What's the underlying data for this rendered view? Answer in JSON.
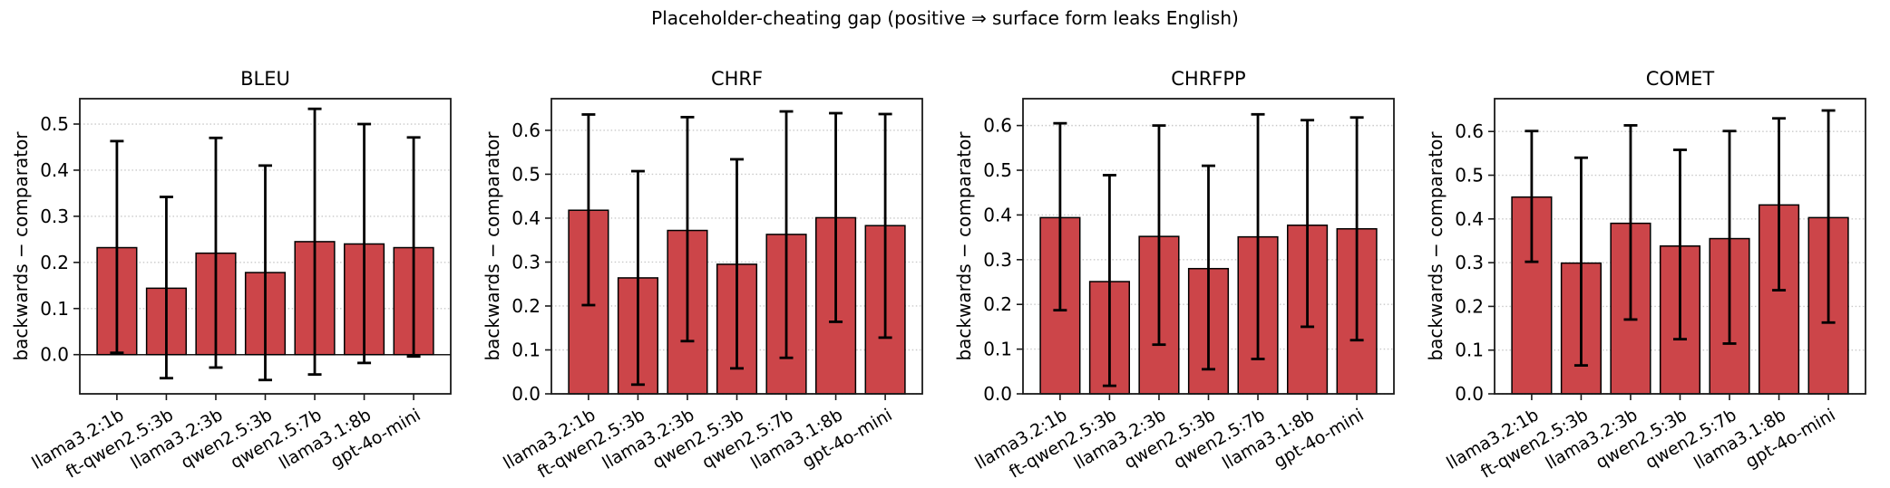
{
  "suptitle": "Placeholder-cheating gap (positive ⇒ surface form leaks English)",
  "ylabel": "backwards − comparator",
  "categories": [
    "llama3.2:1b",
    "ft-qwen2.5:3b",
    "llama3.2:3b",
    "qwen2.5:3b",
    "qwen2.5:7b",
    "llama3.1:8b",
    "gpt-4o-mini"
  ],
  "colors": {
    "bar_fill": "#CC4549",
    "bar_edge": "#000000",
    "error_bar": "#000000",
    "grid": "#c9c9c9",
    "spine": "#1a1a1a",
    "text": "#000000",
    "background": "#ffffff"
  },
  "chart_data": [
    {
      "type": "bar",
      "title": "BLEU",
      "ylabel": "backwards − comparator",
      "categories": [
        "llama3.2:1b",
        "ft-qwen2.5:3b",
        "llama3.2:3b",
        "qwen2.5:3b",
        "qwen2.5:7b",
        "llama3.1:8b",
        "gpt-4o-mini"
      ],
      "values": [
        0.232,
        0.144,
        0.22,
        0.178,
        0.245,
        0.24,
        0.232
      ],
      "error_low": [
        0.004,
        -0.051,
        -0.028,
        -0.055,
        -0.043,
        -0.018,
        -0.004
      ],
      "error_high": [
        0.463,
        0.342,
        0.47,
        0.41,
        0.533,
        0.5,
        0.471
      ],
      "ylim": [
        -0.085,
        0.555
      ],
      "yticks": [
        0.0,
        0.1,
        0.2,
        0.3,
        0.4,
        0.5
      ],
      "grid": true,
      "zero_line": true,
      "legend": "none"
    },
    {
      "type": "bar",
      "title": "CHRF",
      "ylabel": "backwards − comparator",
      "categories": [
        "llama3.2:1b",
        "ft-qwen2.5:3b",
        "llama3.2:3b",
        "qwen2.5:3b",
        "qwen2.5:7b",
        "llama3.1:8b",
        "gpt-4o-mini"
      ],
      "values": [
        0.418,
        0.264,
        0.372,
        0.295,
        0.363,
        0.401,
        0.383
      ],
      "error_low": [
        0.202,
        0.021,
        0.12,
        0.058,
        0.082,
        0.164,
        0.128
      ],
      "error_high": [
        0.636,
        0.507,
        0.63,
        0.534,
        0.643,
        0.639,
        0.637
      ],
      "ylim": [
        0.0,
        0.672
      ],
      "yticks": [
        0.0,
        0.1,
        0.2,
        0.3,
        0.4,
        0.5,
        0.6
      ],
      "grid": true,
      "zero_line": false,
      "legend": "none"
    },
    {
      "type": "bar",
      "title": "CHRFPP",
      "ylabel": "backwards − comparator",
      "categories": [
        "llama3.2:1b",
        "ft-qwen2.5:3b",
        "llama3.2:3b",
        "qwen2.5:3b",
        "qwen2.5:7b",
        "llama3.1:8b",
        "gpt-4o-mini"
      ],
      "values": [
        0.394,
        0.251,
        0.352,
        0.28,
        0.351,
        0.377,
        0.369
      ],
      "error_low": [
        0.187,
        0.018,
        0.11,
        0.055,
        0.078,
        0.15,
        0.12
      ],
      "error_high": [
        0.605,
        0.489,
        0.6,
        0.51,
        0.625,
        0.612,
        0.618
      ],
      "ylim": [
        0.0,
        0.66
      ],
      "yticks": [
        0.0,
        0.1,
        0.2,
        0.3,
        0.4,
        0.5,
        0.6
      ],
      "grid": true,
      "zero_line": false,
      "legend": "none"
    },
    {
      "type": "bar",
      "title": "COMET",
      "ylabel": "backwards − comparator",
      "categories": [
        "llama3.2:1b",
        "ft-qwen2.5:3b",
        "llama3.2:3b",
        "qwen2.5:3b",
        "qwen2.5:7b",
        "llama3.1:8b",
        "gpt-4o-mini"
      ],
      "values": [
        0.45,
        0.299,
        0.39,
        0.338,
        0.355,
        0.432,
        0.403
      ],
      "error_low": [
        0.302,
        0.065,
        0.17,
        0.125,
        0.115,
        0.237,
        0.163
      ],
      "error_high": [
        0.601,
        0.54,
        0.614,
        0.558,
        0.601,
        0.63,
        0.648
      ],
      "ylim": [
        0.0,
        0.675
      ],
      "yticks": [
        0.0,
        0.1,
        0.2,
        0.3,
        0.4,
        0.5,
        0.6
      ],
      "grid": true,
      "zero_line": false,
      "legend": "none"
    }
  ]
}
